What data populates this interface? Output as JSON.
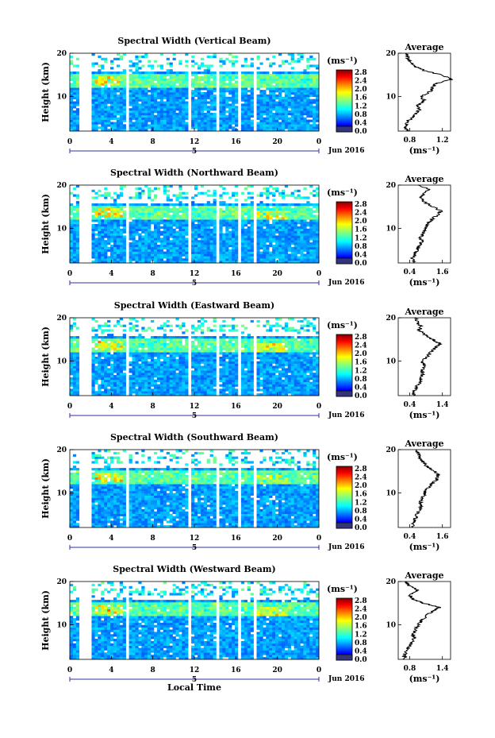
{
  "chart_data": [
    {
      "type": "heatmap",
      "title": "Spectral Width (Vertical Beam)",
      "ylabel": "Height (km)",
      "yticks": [
        "20",
        "10"
      ],
      "xticks": [
        "0",
        "4",
        "8",
        "12",
        "16",
        "20",
        "0"
      ],
      "date_marker": "5",
      "date_label": "Jun 2016",
      "colorbar": {
        "unit": "(ms⁻¹)",
        "ticks": [
          "2.8",
          "2.4",
          "2.0",
          "1.6",
          "1.2",
          "0.8",
          "0.4",
          "0.0"
        ]
      },
      "profile": {
        "title": "Average",
        "xticks": [
          "0.8",
          "1.2"
        ],
        "xlabel": "(ms⁻¹)",
        "yticks": [
          "20",
          "10"
        ],
        "height_km": [
          2,
          3,
          4,
          5,
          6,
          7,
          8,
          9,
          10,
          11,
          12,
          13,
          14,
          15,
          16,
          17,
          18,
          19,
          20
        ],
        "values": [
          0.78,
          0.74,
          0.76,
          0.82,
          0.88,
          0.92,
          0.9,
          0.98,
          0.94,
          1.04,
          1.08,
          1.12,
          1.32,
          1.18,
          0.98,
          0.86,
          0.8,
          0.78,
          0.76
        ]
      }
    },
    {
      "type": "heatmap",
      "title": "Spectral Width (Northward Beam)",
      "ylabel": "Height (km)",
      "yticks": [
        "20",
        "10"
      ],
      "xticks": [
        "0",
        "4",
        "8",
        "12",
        "16",
        "20",
        "0"
      ],
      "date_marker": "5",
      "date_label": "Jun 2016",
      "colorbar": {
        "unit": "(ms⁻¹)",
        "ticks": [
          "2.8",
          "2.4",
          "2.0",
          "1.6",
          "1.2",
          "0.8",
          "0.4",
          "0.0"
        ]
      },
      "profile": {
        "title": "Average",
        "xticks": [
          "0.4",
          "1.6"
        ],
        "xlabel": "(ms⁻¹)",
        "yticks": [
          "20",
          "10"
        ],
        "height_km": [
          2,
          3,
          4,
          5,
          6,
          7,
          8,
          9,
          10,
          11,
          12,
          13,
          14,
          15,
          16,
          17,
          18,
          19,
          20
        ],
        "values": [
          0.55,
          0.5,
          0.62,
          0.68,
          0.75,
          0.84,
          0.8,
          0.9,
          0.95,
          1.05,
          1.2,
          1.4,
          1.55,
          1.25,
          0.95,
          0.8,
          0.9,
          1.1,
          0.7
        ]
      }
    },
    {
      "type": "heatmap",
      "title": "Spectral Width (Eastward Beam)",
      "ylabel": "Height (km)",
      "yticks": [
        "20",
        "10"
      ],
      "xticks": [
        "0",
        "4",
        "8",
        "12",
        "16",
        "20",
        "0"
      ],
      "date_marker": "5",
      "date_label": "Jun 2016",
      "colorbar": {
        "unit": "(ms⁻¹)",
        "ticks": [
          "2.8",
          "2.4",
          "2.0",
          "1.6",
          "1.2",
          "0.8",
          "0.4",
          "0.0"
        ]
      },
      "profile": {
        "title": "Average",
        "xticks": [
          "0.4",
          "1.4"
        ],
        "xlabel": "(ms⁻¹)",
        "yticks": [
          "20",
          "10"
        ],
        "height_km": [
          2,
          3,
          4,
          5,
          6,
          7,
          8,
          9,
          10,
          11,
          12,
          13,
          14,
          15,
          16,
          17,
          18,
          19,
          20
        ],
        "values": [
          0.55,
          0.52,
          0.6,
          0.7,
          0.75,
          0.8,
          0.78,
          0.86,
          0.8,
          0.94,
          1.05,
          1.18,
          1.32,
          1.1,
          0.88,
          0.7,
          0.75,
          0.62,
          0.58
        ]
      }
    },
    {
      "type": "heatmap",
      "title": "Spectral Width (Southward Beam)",
      "ylabel": "Height (km)",
      "yticks": [
        "20",
        "10"
      ],
      "xticks": [
        "0",
        "4",
        "8",
        "12",
        "16",
        "20",
        "0"
      ],
      "date_marker": "5",
      "date_label": "Jun 2016",
      "colorbar": {
        "unit": "(ms⁻¹)",
        "ticks": [
          "2.8",
          "2.4",
          "2.0",
          "1.6",
          "1.2",
          "0.8",
          "0.4",
          "0.0"
        ]
      },
      "profile": {
        "title": "Average",
        "xticks": [
          "0.4",
          "1.6"
        ],
        "xlabel": "(ms⁻¹)",
        "yticks": [
          "20",
          "10"
        ],
        "height_km": [
          2,
          3,
          4,
          5,
          6,
          7,
          8,
          9,
          10,
          11,
          12,
          13,
          14,
          15,
          16,
          17,
          18,
          19,
          20
        ],
        "values": [
          0.55,
          0.52,
          0.62,
          0.68,
          0.74,
          0.82,
          0.78,
          0.88,
          0.95,
          1.05,
          1.2,
          1.38,
          1.45,
          1.3,
          1.05,
          0.9,
          0.8,
          0.72,
          0.6
        ]
      }
    },
    {
      "type": "heatmap",
      "title": "Spectral Width (Westward Beam)",
      "ylabel": "Height (km)",
      "yticks": [
        "20",
        "10"
      ],
      "xticks": [
        "0",
        "4",
        "8",
        "12",
        "16",
        "20",
        "0"
      ],
      "date_marker": "5",
      "date_label": "Jun 2016",
      "xlabel": "Local Time",
      "colorbar": {
        "unit": "(ms⁻¹)",
        "ticks": [
          "2.8",
          "2.4",
          "2.0",
          "1.6",
          "1.2",
          "0.8",
          "0.4",
          "0.0"
        ]
      },
      "profile": {
        "title": "Average",
        "xticks": [
          "0.8",
          "1.4"
        ],
        "xlabel": "(ms⁻¹)",
        "yticks": [
          "20",
          "10"
        ],
        "height_km": [
          2,
          3,
          4,
          5,
          6,
          7,
          8,
          9,
          10,
          11,
          12,
          13,
          14,
          15,
          16,
          17,
          18,
          19,
          20
        ],
        "values": [
          0.72,
          0.7,
          0.74,
          0.8,
          0.84,
          0.88,
          0.86,
          0.92,
          0.96,
          1.02,
          1.1,
          1.2,
          1.35,
          1.05,
          0.85,
          0.8,
          0.95,
          0.78,
          0.74
        ]
      }
    }
  ]
}
